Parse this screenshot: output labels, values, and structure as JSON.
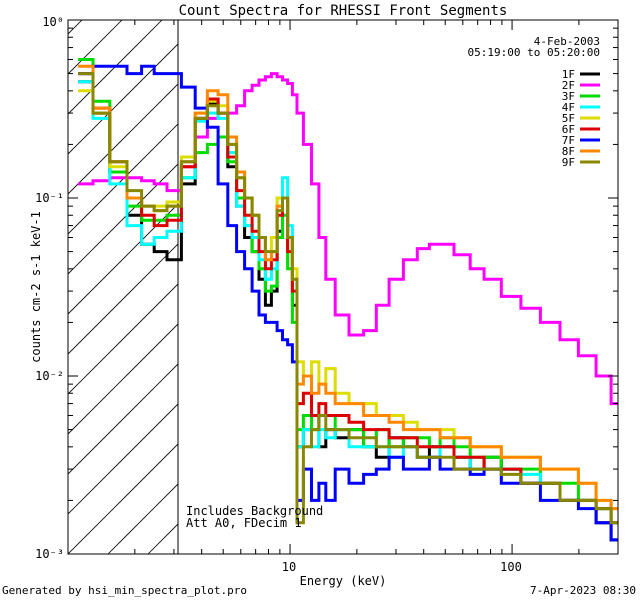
{
  "chart_data": {
    "type": "line",
    "title": "Count Spectra for RHESSI Front Segments",
    "xlabel": "Energy (keV)",
    "ylabel": "counts cm-2 s-1 keV-1",
    "xscale": "log",
    "yscale": "log",
    "xlim": [
      1.0,
      300.0
    ],
    "ylim": [
      0.001,
      1.0
    ],
    "x_tick_labels": [
      "10",
      "100"
    ],
    "y_tick_labels": [
      "10⁻³",
      "10⁻²",
      "10⁻¹",
      "10⁰"
    ],
    "hatched_region_max_keV": 3.0,
    "date": "4-Feb-2003",
    "time_range": "05:19:00 to 05:20:00",
    "annotations": [
      "Includes Background",
      "Att A0, FDecim 1"
    ],
    "legend_position": "top-right",
    "x": [
      1.2,
      1.4,
      1.7,
      2.0,
      2.3,
      2.6,
      3.0,
      3.5,
      4.0,
      4.5,
      5.0,
      5.5,
      6.0,
      6.5,
      7.0,
      7.5,
      8.0,
      8.5,
      9.0,
      9.5,
      10.0,
      10.5,
      11.0,
      12.0,
      13.0,
      14.0,
      15.0,
      17.0,
      20.0,
      23.0,
      26.0,
      30.0,
      35.0,
      40.0,
      45.0,
      50.0,
      60.0,
      70.0,
      80.0,
      100.0,
      120.0,
      150.0,
      180.0,
      220.0,
      260.0,
      300.0
    ],
    "series": [
      {
        "name": "1F",
        "color": "#000000",
        "values": [
          0.45,
          0.3,
          0.14,
          0.08,
          0.055,
          0.05,
          0.045,
          0.12,
          0.28,
          0.34,
          0.3,
          0.15,
          0.09,
          0.06,
          0.05,
          0.035,
          0.025,
          0.03,
          0.065,
          0.1,
          0.06,
          0.025,
          0.004,
          0.005,
          0.006,
          0.004,
          0.005,
          0.0045,
          0.005,
          0.004,
          0.0035,
          0.0045,
          0.004,
          0.0035,
          0.004,
          0.004,
          0.0035,
          0.003,
          0.0035,
          0.003,
          0.0025,
          0.0025,
          0.002,
          0.002,
          0.0015,
          0.0012
        ]
      },
      {
        "name": "2F",
        "color": "#ff00ff",
        "values": [
          0.12,
          0.125,
          0.13,
          0.13,
          0.125,
          0.12,
          0.11,
          0.15,
          0.22,
          0.28,
          0.3,
          0.3,
          0.33,
          0.4,
          0.43,
          0.46,
          0.48,
          0.5,
          0.48,
          0.46,
          0.44,
          0.38,
          0.3,
          0.2,
          0.12,
          0.06,
          0.035,
          0.022,
          0.017,
          0.018,
          0.025,
          0.035,
          0.045,
          0.052,
          0.055,
          0.055,
          0.048,
          0.04,
          0.035,
          0.028,
          0.024,
          0.02,
          0.016,
          0.013,
          0.01,
          0.007
        ]
      },
      {
        "name": "3F",
        "color": "#00dd00",
        "values": [
          0.6,
          0.35,
          0.14,
          0.09,
          0.075,
          0.075,
          0.08,
          0.13,
          0.18,
          0.2,
          0.22,
          0.16,
          0.1,
          0.07,
          0.05,
          0.04,
          0.03,
          0.032,
          0.06,
          0.08,
          0.04,
          0.02,
          0.005,
          0.006,
          0.005,
          0.006,
          0.006,
          0.005,
          0.005,
          0.004,
          0.005,
          0.004,
          0.0045,
          0.0045,
          0.004,
          0.0045,
          0.004,
          0.0035,
          0.0035,
          0.003,
          0.003,
          0.0025,
          0.0025,
          0.002,
          0.0018,
          0.0015
        ]
      },
      {
        "name": "4F",
        "color": "#00ffff",
        "values": [
          0.45,
          0.28,
          0.12,
          0.07,
          0.055,
          0.06,
          0.065,
          0.13,
          0.27,
          0.3,
          0.28,
          0.18,
          0.09,
          0.07,
          0.06,
          0.045,
          0.035,
          0.04,
          0.09,
          0.13,
          0.07,
          0.03,
          0.004,
          0.005,
          0.004,
          0.005,
          0.0045,
          0.005,
          0.004,
          0.004,
          0.004,
          0.0035,
          0.004,
          0.0035,
          0.0035,
          0.004,
          0.0035,
          0.003,
          0.003,
          0.003,
          0.0028,
          0.0025,
          0.002,
          0.002,
          0.0018,
          0.0015
        ]
      },
      {
        "name": "5F",
        "color": "#dddd00",
        "values": [
          0.4,
          0.3,
          0.15,
          0.1,
          0.09,
          0.09,
          0.095,
          0.17,
          0.3,
          0.35,
          0.33,
          0.2,
          0.13,
          0.1,
          0.08,
          0.06,
          0.05,
          0.06,
          0.1,
          0.1,
          0.06,
          0.04,
          0.012,
          0.01,
          0.012,
          0.009,
          0.011,
          0.008,
          0.007,
          0.007,
          0.006,
          0.006,
          0.0055,
          0.005,
          0.005,
          0.005,
          0.0045,
          0.004,
          0.004,
          0.0035,
          0.0035,
          0.003,
          0.003,
          0.0025,
          0.002,
          0.0018
        ]
      },
      {
        "name": "6F",
        "color": "#dd0000",
        "values": [
          0.5,
          0.32,
          0.16,
          0.1,
          0.08,
          0.07,
          0.075,
          0.15,
          0.28,
          0.36,
          0.3,
          0.17,
          0.11,
          0.08,
          0.065,
          0.05,
          0.04,
          0.045,
          0.08,
          0.1,
          0.05,
          0.03,
          0.007,
          0.008,
          0.006,
          0.007,
          0.006,
          0.006,
          0.0055,
          0.005,
          0.005,
          0.0045,
          0.0045,
          0.004,
          0.004,
          0.004,
          0.0035,
          0.0035,
          0.003,
          0.003,
          0.0025,
          0.0025,
          0.002,
          0.002,
          0.0018,
          0.0015
        ]
      },
      {
        "name": "7F",
        "color": "#0000ff",
        "values": [
          0.5,
          0.55,
          0.55,
          0.5,
          0.55,
          0.5,
          0.5,
          0.42,
          0.32,
          0.25,
          0.12,
          0.07,
          0.05,
          0.04,
          0.03,
          0.022,
          0.02,
          0.02,
          0.018,
          0.016,
          0.015,
          0.012,
          0.002,
          0.003,
          0.002,
          0.0025,
          0.002,
          0.003,
          0.0025,
          0.0028,
          0.003,
          0.0035,
          0.003,
          0.003,
          0.0035,
          0.003,
          0.003,
          0.0028,
          0.003,
          0.0025,
          0.0025,
          0.002,
          0.002,
          0.0018,
          0.0015,
          0.0012
        ]
      },
      {
        "name": "8F",
        "color": "#ff8800",
        "values": [
          0.55,
          0.32,
          0.16,
          0.1,
          0.09,
          0.085,
          0.09,
          0.16,
          0.3,
          0.4,
          0.38,
          0.22,
          0.14,
          0.1,
          0.08,
          0.06,
          0.045,
          0.05,
          0.09,
          0.1,
          0.06,
          0.035,
          0.009,
          0.01,
          0.008,
          0.009,
          0.008,
          0.007,
          0.007,
          0.006,
          0.006,
          0.0055,
          0.005,
          0.005,
          0.005,
          0.0045,
          0.0045,
          0.004,
          0.004,
          0.0035,
          0.0035,
          0.003,
          0.003,
          0.0025,
          0.002,
          0.0018
        ]
      },
      {
        "name": "9F",
        "color": "#888800",
        "values": [
          0.5,
          0.3,
          0.16,
          0.11,
          0.09,
          0.085,
          0.09,
          0.16,
          0.28,
          0.33,
          0.3,
          0.2,
          0.13,
          0.1,
          0.08,
          0.06,
          0.05,
          0.05,
          0.085,
          0.1,
          0.06,
          0.035,
          0.0015,
          0.004,
          0.005,
          0.006,
          0.005,
          0.005,
          0.0045,
          0.0045,
          0.004,
          0.004,
          0.004,
          0.0035,
          0.0035,
          0.0035,
          0.003,
          0.003,
          0.003,
          0.0028,
          0.0025,
          0.0025,
          0.002,
          0.002,
          0.0018,
          0.0015
        ]
      }
    ]
  },
  "footer": {
    "generated_by": "Generated by hsi_min_spectra_plot.pro",
    "timestamp": "7-Apr-2023 08:30"
  }
}
